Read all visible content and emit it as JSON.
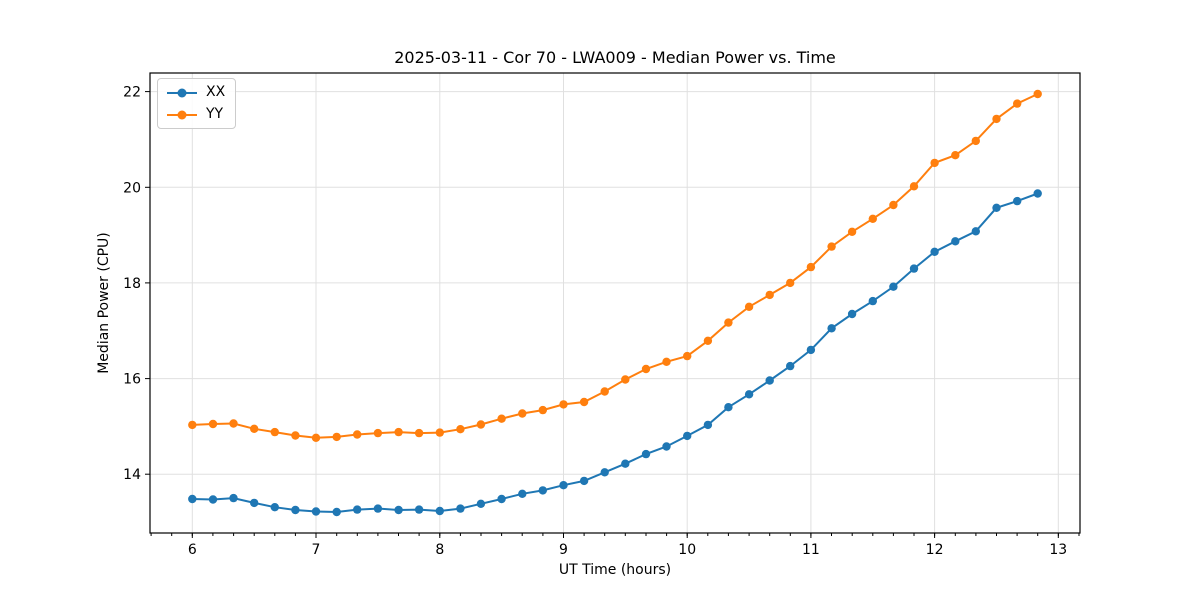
{
  "chart_data": {
    "type": "line",
    "title": "2025-03-11 - Cor 70 - LWA009 - Median Power vs. Time",
    "xlabel": "UT Time (hours)",
    "ylabel": "Median Power (CPU)",
    "xlim": [
      5.658,
      13.175
    ],
    "ylim": [
      12.77,
      22.39
    ],
    "x_ticks": [
      6,
      7,
      8,
      9,
      10,
      11,
      12,
      13
    ],
    "y_ticks": [
      14,
      16,
      18,
      20,
      22
    ],
    "x_minor_tick_step": 0.166667,
    "grid": true,
    "legend_position": "upper left",
    "x": [
      6.0,
      6.167,
      6.333,
      6.5,
      6.667,
      6.833,
      7.0,
      7.167,
      7.333,
      7.5,
      7.667,
      7.833,
      8.0,
      8.167,
      8.333,
      8.5,
      8.667,
      8.833,
      9.0,
      9.167,
      9.333,
      9.5,
      9.667,
      9.833,
      10.0,
      10.167,
      10.333,
      10.5,
      10.667,
      10.833,
      11.0,
      11.167,
      11.333,
      11.5,
      11.667,
      11.833,
      12.0,
      12.167,
      12.333,
      12.5,
      12.667,
      12.833
    ],
    "series": [
      {
        "name": "XX",
        "color": "#1f77b4",
        "marker": "circle",
        "values": [
          13.48,
          13.47,
          13.5,
          13.4,
          13.31,
          13.25,
          13.22,
          13.21,
          13.26,
          13.28,
          13.25,
          13.26,
          13.23,
          13.28,
          13.38,
          13.48,
          13.59,
          13.66,
          13.77,
          13.86,
          14.04,
          14.22,
          14.42,
          14.58,
          14.8,
          15.03,
          15.4,
          15.67,
          15.96,
          16.26,
          16.6,
          17.05,
          17.35,
          17.62,
          17.92,
          18.3,
          18.65,
          18.87,
          19.08,
          19.57,
          19.71,
          19.87
        ]
      },
      {
        "name": "YY",
        "color": "#ff7f0e",
        "marker": "circle",
        "values": [
          15.03,
          15.05,
          15.06,
          14.95,
          14.88,
          14.81,
          14.76,
          14.78,
          14.83,
          14.86,
          14.88,
          14.86,
          14.87,
          14.94,
          15.04,
          15.16,
          15.27,
          15.34,
          15.46,
          15.51,
          15.73,
          15.98,
          16.2,
          16.35,
          16.47,
          16.79,
          17.17,
          17.5,
          17.75,
          18.0,
          18.33,
          18.76,
          19.07,
          19.34,
          19.63,
          20.02,
          20.51,
          20.67,
          20.97,
          21.43,
          21.75,
          21.95
        ]
      }
    ]
  }
}
